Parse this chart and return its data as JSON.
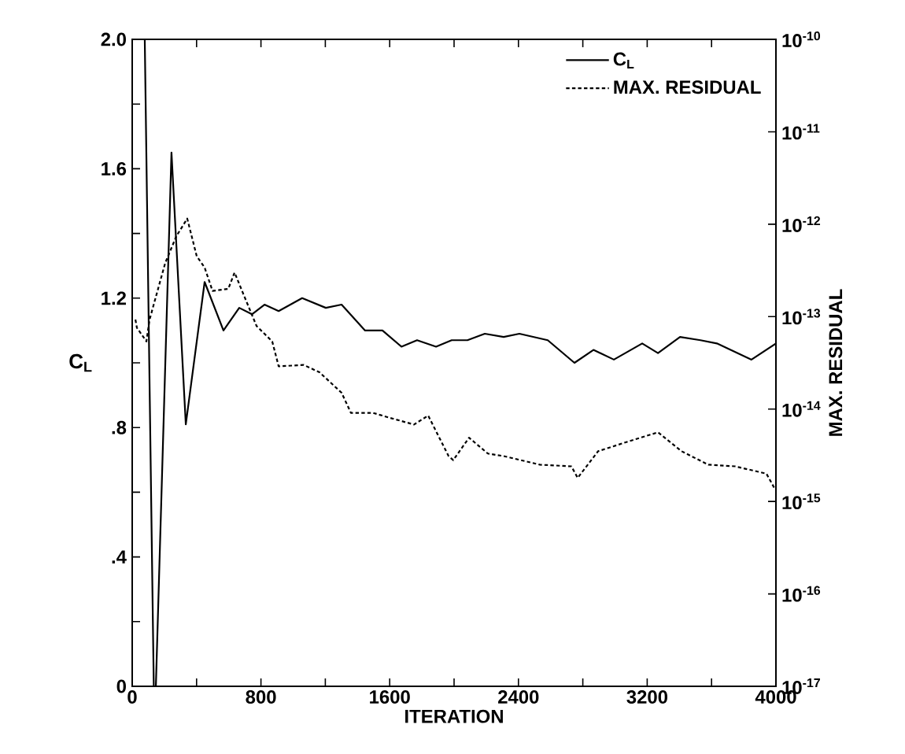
{
  "chart_data": {
    "type": "line",
    "xlabel": "ITERATION",
    "ylabel": "C$_{L}$",
    "y2label": "MAX. RESIDUAL",
    "xlim": [
      0,
      4000
    ],
    "ylim": [
      0,
      2
    ],
    "y2lim": [
      1e-17,
      1e-10
    ],
    "log": "y2",
    "legend": "top right",
    "marker": "none",
    "xticks": [
      0,
      {
        "value": 400,
        "label": null
      },
      800,
      {
        "value": 1200,
        "label": null
      },
      1600,
      {
        "value": 2000,
        "label": null
      },
      2400,
      {
        "value": 2800,
        "label": null
      },
      3200,
      {
        "value": 3600,
        "label": null
      },
      4000
    ],
    "yticks": [
      0,
      {
        "value": 0.2,
        "label": null
      },
      {
        "value": 0.4,
        "label": ".4"
      },
      {
        "value": 0.6,
        "label": null
      },
      {
        "value": 0.8,
        "label": ".8"
      },
      {
        "value": 1.0,
        "label": null
      },
      1.2,
      {
        "value": 1.4,
        "label": null
      },
      1.6,
      {
        "value": 1.8,
        "label": null
      },
      {
        "value": 2.0,
        "label": "2.0"
      }
    ],
    "y2ticks": [
      {
        "value": 1e-17,
        "label": "10$^{-17}$"
      },
      {
        "value": 1e-16,
        "label": "10$^{-16}$"
      },
      {
        "value": 1e-15,
        "label": "10$^{-15}$"
      },
      {
        "value": 1e-14,
        "label": "10$^{-14}$"
      },
      {
        "value": 1e-13,
        "label": "10$^{-13}$"
      },
      {
        "value": 1e-12,
        "label": "10$^{-12}$"
      },
      {
        "value": 1e-11,
        "label": "10$^{-11}$"
      },
      {
        "value": 1e-10,
        "label": "10$^{-10}$"
      }
    ],
    "series": [
      {
        "name": "C$_{L}$",
        "color": "#000000",
        "line_style": "solid",
        "x": [
          78,
          134,
          147,
          244,
          333,
          450,
          567,
          665,
          744,
          822,
          910,
          1056,
          1203,
          1301,
          1447,
          1555,
          1673,
          1770,
          1888,
          1985,
          2083,
          2191,
          2308,
          2406,
          2582,
          2748,
          2866,
          2993,
          3169,
          3267,
          3404,
          3531,
          3633,
          3848,
          4000
        ],
        "values": [
          2.0,
          0.0,
          0.0,
          1.65,
          0.81,
          1.25,
          1.1,
          1.17,
          1.15,
          1.18,
          1.16,
          1.2,
          1.17,
          1.18,
          1.1,
          1.1,
          1.05,
          1.07,
          1.05,
          1.07,
          1.07,
          1.09,
          1.08,
          1.09,
          1.07,
          1.0,
          1.04,
          1.01,
          1.06,
          1.03,
          1.08,
          1.07,
          1.06,
          1.01,
          1.06
        ]
      },
      {
        "name": "MAX. RESIDUAL",
        "color": "#000000",
        "line_style": "dashed",
        "axis": "y2",
        "x": [
          20,
          29,
          88,
          108,
          205,
          274,
          342,
          401,
          450,
          499,
          597,
          636,
          694,
          773,
          870,
          910,
          1066,
          1164,
          1301,
          1359,
          1496,
          1594,
          1751,
          1839,
          1966,
          1995,
          2093,
          2210,
          2308,
          2533,
          2729,
          2768,
          2895,
          3090,
          3267,
          3413,
          3580,
          3746,
          3941,
          3990
        ],
        "values": [
          9.3e-14,
          7.6e-14,
          5.4e-14,
          9.3e-14,
          3.8e-13,
          7.4e-13,
          1.15e-12,
          4.5e-13,
          3.4e-13,
          1.9e-13,
          2e-13,
          3e-13,
          1.7e-13,
          7.9e-14,
          5.4e-14,
          2.9e-14,
          3e-14,
          2.5e-14,
          1.5e-14,
          9.1e-15,
          9.1e-15,
          8.1e-15,
          6.8e-15,
          8.5e-15,
          3.1e-15,
          2.8e-15,
          4.9e-15,
          3.3e-15,
          3.1e-15,
          2.5e-15,
          2.4e-15,
          1.8e-15,
          3.5e-15,
          4.5e-15,
          5.6e-15,
          3.5e-15,
          2.5e-15,
          2.4e-15,
          2e-15,
          1.4e-15
        ]
      }
    ]
  }
}
